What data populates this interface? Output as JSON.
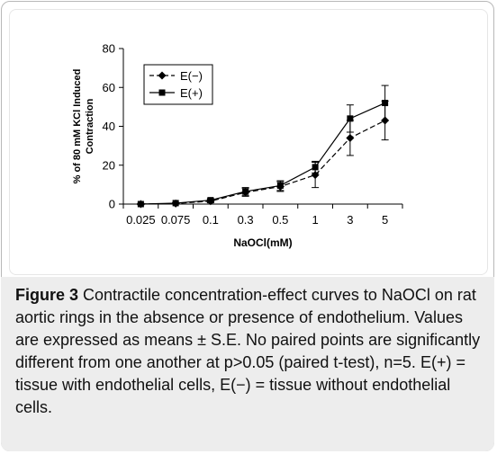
{
  "chart_data": {
    "type": "line",
    "xlabel": "NaOCl(mM)",
    "ylabel": "% of 80 mM KCl Induced Contraction",
    "ylabel_lines": [
      "% of 80 mM KCl Induced",
      "Contraction"
    ],
    "categories": [
      "0.025",
      "0.075",
      "0.1",
      "0.3",
      "0.5",
      "1",
      "3",
      "5"
    ],
    "ylim": [
      0,
      80
    ],
    "yticks": [
      0,
      20,
      40,
      60,
      80
    ],
    "grid": false,
    "legend_position": "top-left",
    "series": [
      {
        "name": "E(−)",
        "marker": "diamond",
        "line_style": "dashed",
        "values": [
          0,
          0.3,
          1.5,
          6,
          9,
          15,
          34,
          43
        ],
        "errors": [
          0.3,
          0.3,
          0.8,
          2,
          2.5,
          6.5,
          9,
          10
        ]
      },
      {
        "name": "E(+)",
        "marker": "square",
        "line_style": "solid",
        "values": [
          0,
          0.5,
          2,
          6.5,
          9.5,
          19,
          44,
          52
        ],
        "errors": [
          0.3,
          0.3,
          0.8,
          2,
          2.5,
          3,
          7,
          9
        ]
      }
    ]
  },
  "caption": {
    "label": "Figure 3",
    "text": "Contractile concentration-effect curves to NaOCl on rat aortic rings in the absence or presence of endothelium. Values are expressed as means ± S.E. No paired points are significantly different from one another at p>0.05 (paired t-test), n=5. E(+) = tissue with endothelial cells, E(−) = tissue without endothelial cells."
  },
  "colors": {
    "series": "#000000",
    "caption_background": "#ededed",
    "frame_border": "#b8b8b8"
  }
}
